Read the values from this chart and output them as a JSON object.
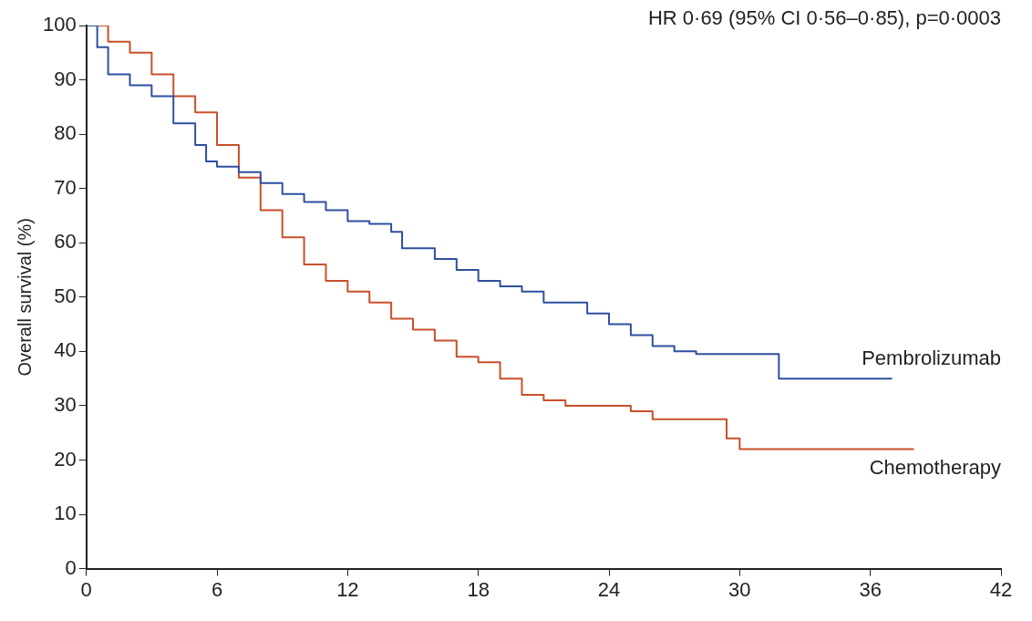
{
  "chart_data": {
    "type": "step",
    "ylabel": "Overall survival (%)",
    "annotations": [
      "HR 0·69 (95% CI 0·56–0·85), p=0·0003"
    ],
    "xlim": [
      0,
      42
    ],
    "xticks": [
      0,
      6,
      12,
      18,
      24,
      30,
      36,
      42
    ],
    "ylim": [
      0,
      100
    ],
    "yticks": [
      0,
      10,
      20,
      30,
      40,
      50,
      60,
      70,
      80,
      90,
      100
    ],
    "grid": false,
    "legend": false,
    "marker": "none",
    "series": [
      {
        "name": "Pembrolizumab",
        "color": "#2f4fa0",
        "x": [
          0,
          0.5,
          1,
          2,
          3,
          4,
          5,
          5.5,
          6,
          7,
          8,
          9,
          10,
          11,
          12,
          13,
          14,
          14.5,
          16,
          17,
          18,
          19,
          20,
          21,
          22,
          23,
          24,
          25,
          26,
          27,
          28,
          31.8,
          37
        ],
        "values": [
          100,
          96,
          91,
          89,
          87,
          82,
          78,
          75,
          74,
          73,
          71,
          69,
          67.5,
          66,
          64,
          63.5,
          62,
          59,
          57,
          55,
          53,
          52,
          51,
          49,
          49,
          47,
          45,
          43,
          41,
          40,
          39.5,
          35,
          35
        ]
      },
      {
        "name": "Chemotherapy",
        "color": "#c8502a",
        "x": [
          0,
          1,
          2,
          3,
          4,
          5,
          6,
          7,
          8,
          9,
          10,
          11,
          12,
          13,
          14,
          15,
          16,
          17,
          18,
          19,
          20,
          21,
          22,
          25,
          26,
          29.4,
          30,
          38
        ],
        "values": [
          100,
          97,
          95,
          91,
          87,
          84,
          78,
          72,
          66,
          61,
          56,
          53,
          51,
          49,
          46,
          44,
          42,
          39,
          38,
          35,
          32,
          31,
          30,
          29,
          27.5,
          24,
          22,
          22
        ]
      }
    ]
  }
}
